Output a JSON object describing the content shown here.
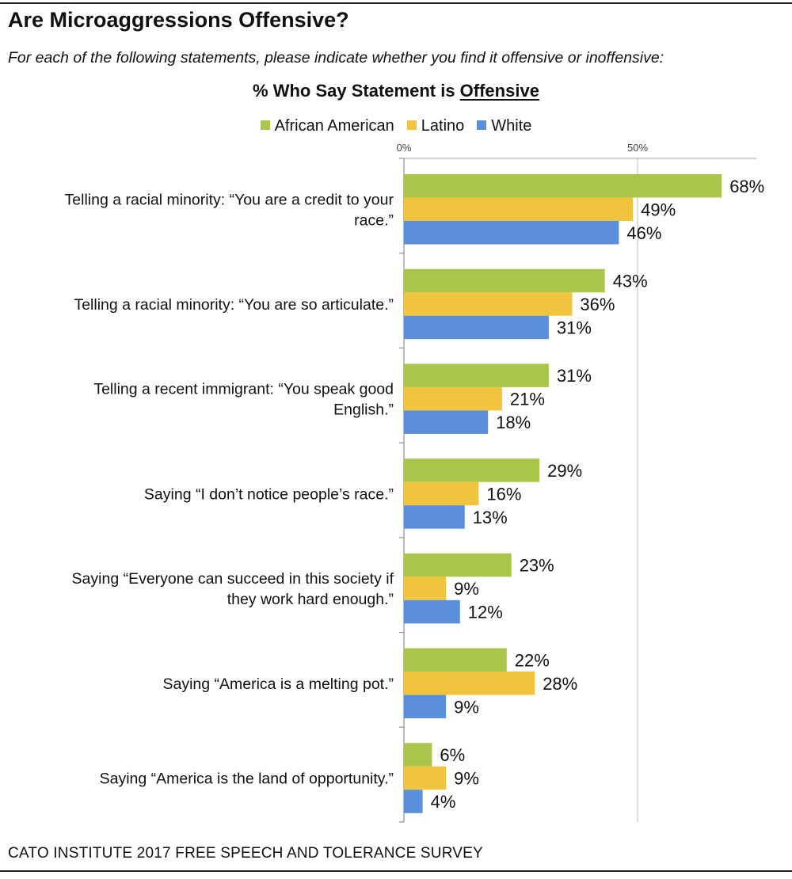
{
  "title": "Are Microaggressions Offensive?",
  "subtitle": "For each of the following statements, please indicate whether you find it offensive or inoffensive:",
  "chart_heading": {
    "prefix": "% Who Say Statement is ",
    "emphasis": "Offensive"
  },
  "source": "CATO INSTITUTE 2017 FREE SPEECH AND TOLERANCE SURVEY",
  "chart_data": {
    "type": "bar",
    "orientation": "horizontal",
    "title": "% Who Say Statement is Offensive",
    "categories": [
      [
        "Telling a racial minority: “You are a credit to your",
        "race.”"
      ],
      [
        "Telling a racial minority: “You are so articulate.”"
      ],
      [
        "Telling a recent immigrant: “You speak good",
        "English.”"
      ],
      [
        "Saying “I don’t notice people’s race.”"
      ],
      [
        "Saying “Everyone can succeed in this society if",
        "they work hard enough.”"
      ],
      [
        "Saying “America is a melting pot.”"
      ],
      [
        "Saying “America is the land of opportunity.”"
      ]
    ],
    "series": [
      {
        "name": "African American",
        "color": "#a9c64a",
        "values": [
          68,
          43,
          31,
          29,
          23,
          22,
          6
        ]
      },
      {
        "name": "Latino",
        "color": "#f0c43c",
        "values": [
          49,
          36,
          21,
          16,
          9,
          28,
          9
        ]
      },
      {
        "name": "White",
        "color": "#5b8fdb",
        "values": [
          46,
          31,
          18,
          13,
          12,
          9,
          4
        ]
      }
    ],
    "value_suffix": "%",
    "xlim": [
      0,
      75
    ],
    "xticks": [
      0,
      50
    ],
    "xtick_labels": [
      "0%",
      "50%"
    ],
    "legend_position": "top",
    "grid": true
  }
}
